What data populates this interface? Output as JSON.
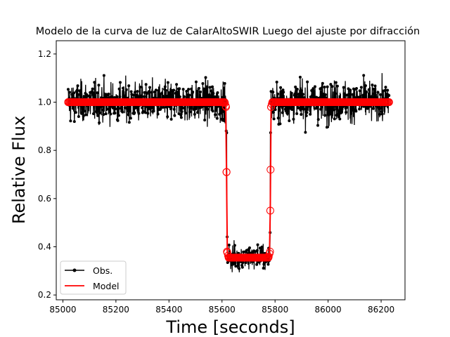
{
  "chart_data": {
    "type": "scatter",
    "title": "Modelo de la curva de luz de CalarAltoSWIR Luego del ajuste por difracción",
    "xlabel": "Time [seconds]",
    "ylabel": "Relative Flux",
    "xlim": [
      84975,
      86290
    ],
    "ylim": [
      0.18,
      1.255
    ],
    "xticks": [
      85000,
      85200,
      85400,
      85600,
      85800,
      86000,
      86200
    ],
    "xtick_labels": [
      "85000",
      "85200",
      "85400",
      "85600",
      "85800",
      "86000",
      "86200"
    ],
    "yticks": [
      0.2,
      0.4,
      0.6,
      0.8,
      1.0,
      1.2
    ],
    "ytick_labels": [
      "0.2",
      "0.4",
      "0.6",
      "0.8",
      "1.0",
      "1.2"
    ],
    "grid": false,
    "legend_position": "lower-left",
    "series": [
      {
        "name": "Obs.",
        "color": "#000000",
        "style": "line-with-dots",
        "x_start": 85020,
        "x_end": 86230,
        "baseline_flux": 1.0,
        "baseline_scatter_range": [
          0.86,
          1.18
        ],
        "in_transit_flux": 0.35,
        "in_transit_scatter_range": [
          0.23,
          0.47
        ]
      },
      {
        "name": "Model",
        "color": "#ff0000",
        "style": "line-with-open-circles",
        "points": [
          [
            85020,
            1.0
          ],
          [
            85610,
            1.0
          ],
          [
            85615,
            0.98
          ],
          [
            85617,
            0.71
          ],
          [
            85619,
            0.38
          ],
          [
            85625,
            0.355
          ],
          [
            85775,
            0.355
          ],
          [
            85781,
            0.38
          ],
          [
            85783,
            0.72
          ],
          [
            85785,
            0.98
          ],
          [
            85790,
            1.0
          ],
          [
            86230,
            1.0
          ]
        ]
      }
    ]
  }
}
